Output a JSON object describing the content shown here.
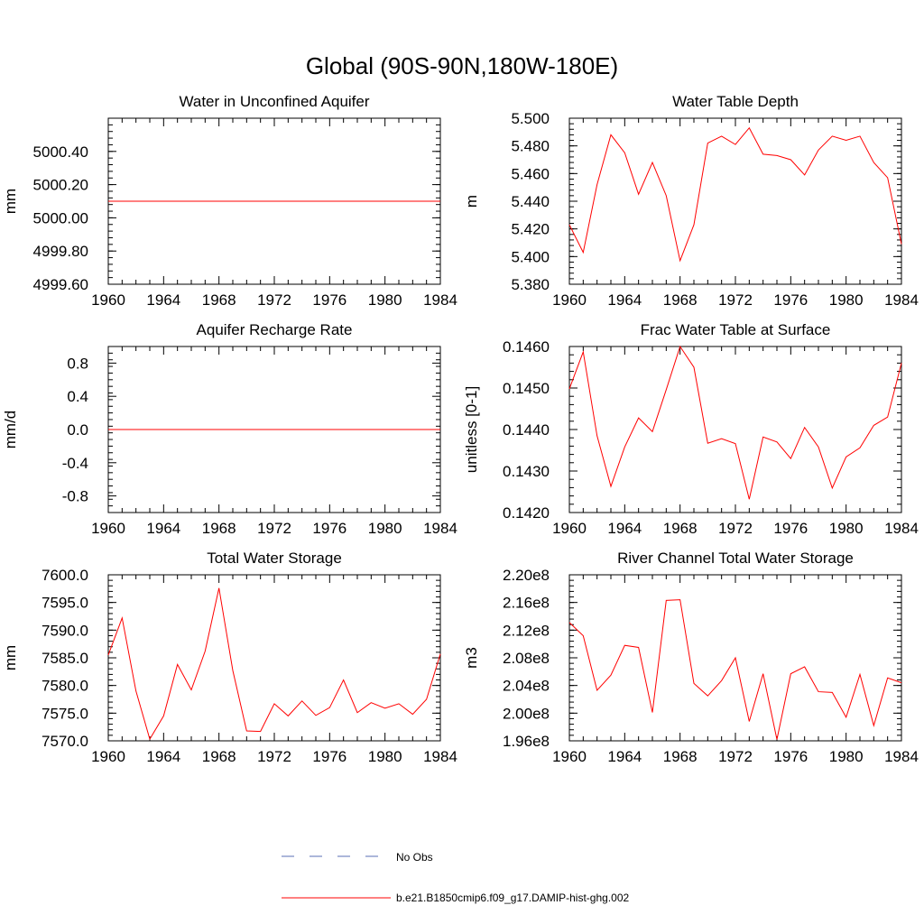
{
  "figure": {
    "title": "Global (90S-90N,180W-180E)",
    "legend": {
      "entries": [
        {
          "label": "No Obs",
          "style": "dashed",
          "color": "#5a6fb4"
        },
        {
          "label": "b.e21.B1850cmip6.f09_g17.DAMIP-hist-ghg.002",
          "style": "solid",
          "color": "#ff0000"
        }
      ]
    }
  },
  "chart_data": [
    {
      "type": "line",
      "title": "Water in Unconfined Aquifer",
      "xlabel": "",
      "ylabel": "mm",
      "xlim": [
        1960,
        1984
      ],
      "ylim": [
        4999.6,
        5000.6
      ],
      "xticks": [
        "1960",
        "1964",
        "1968",
        "1972",
        "1976",
        "1980",
        "1984"
      ],
      "yticks": [
        "4999.60",
        "4999.80",
        "5000.00",
        "5000.20",
        "5000.40"
      ],
      "ytick_values": [
        4999.6,
        4999.8,
        5000.0,
        5000.2,
        5000.4
      ],
      "ytick_minor_step": 0.04,
      "x": [
        1960,
        1961,
        1962,
        1963,
        1964,
        1965,
        1966,
        1967,
        1968,
        1969,
        1970,
        1971,
        1972,
        1973,
        1974,
        1975,
        1976,
        1977,
        1978,
        1979,
        1980,
        1981,
        1982,
        1983,
        1984
      ],
      "series": [
        {
          "color": "#ff0000",
          "values": [
            5000.1,
            5000.1,
            5000.1,
            5000.1,
            5000.1,
            5000.1,
            5000.1,
            5000.1,
            5000.1,
            5000.1,
            5000.1,
            5000.1,
            5000.1,
            5000.1,
            5000.1,
            5000.1,
            5000.1,
            5000.1,
            5000.1,
            5000.1,
            5000.1,
            5000.1,
            5000.1,
            5000.1,
            5000.1
          ]
        }
      ]
    },
    {
      "type": "line",
      "title": "Water Table Depth",
      "xlabel": "",
      "ylabel": "m",
      "xlim": [
        1960,
        1984
      ],
      "ylim": [
        5.38,
        5.5
      ],
      "xticks": [
        "1960",
        "1964",
        "1968",
        "1972",
        "1976",
        "1980",
        "1984"
      ],
      "yticks": [
        "5.380",
        "5.400",
        "5.420",
        "5.440",
        "5.460",
        "5.480",
        "5.500"
      ],
      "ytick_values": [
        5.38,
        5.4,
        5.42,
        5.44,
        5.46,
        5.48,
        5.5
      ],
      "ytick_minor_step": 0.004,
      "x": [
        1960,
        1961,
        1962,
        1963,
        1964,
        1965,
        1966,
        1967,
        1968,
        1969,
        1970,
        1971,
        1972,
        1973,
        1974,
        1975,
        1976,
        1977,
        1978,
        1979,
        1980,
        1981,
        1982,
        1983,
        1984
      ],
      "series": [
        {
          "color": "#ff0000",
          "values": [
            5.423,
            5.403,
            5.452,
            5.488,
            5.475,
            5.445,
            5.468,
            5.444,
            5.397,
            5.423,
            5.482,
            5.487,
            5.481,
            5.493,
            5.474,
            5.473,
            5.47,
            5.459,
            5.477,
            5.487,
            5.484,
            5.487,
            5.468,
            5.457,
            5.409
          ]
        }
      ]
    },
    {
      "type": "line",
      "title": "Aquifer Recharge Rate",
      "xlabel": "",
      "ylabel": "mm/d",
      "xlim": [
        1960,
        1984
      ],
      "ylim": [
        -1.0,
        1.0
      ],
      "xticks": [
        "1960",
        "1964",
        "1968",
        "1972",
        "1976",
        "1980",
        "1984"
      ],
      "yticks": [
        "-0.8",
        "-0.4",
        "0.0",
        "0.4",
        "0.8"
      ],
      "ytick_values": [
        -0.8,
        -0.4,
        0.0,
        0.4,
        0.8
      ],
      "ytick_minor_step": 0.08,
      "x": [
        1960,
        1961,
        1962,
        1963,
        1964,
        1965,
        1966,
        1967,
        1968,
        1969,
        1970,
        1971,
        1972,
        1973,
        1974,
        1975,
        1976,
        1977,
        1978,
        1979,
        1980,
        1981,
        1982,
        1983,
        1984
      ],
      "series": [
        {
          "color": "#ff0000",
          "values": [
            0,
            0,
            0,
            0,
            0,
            0,
            0,
            0,
            0,
            0,
            0,
            0,
            0,
            0,
            0,
            0,
            0,
            0,
            0,
            0,
            0,
            0,
            0,
            0,
            0
          ]
        }
      ]
    },
    {
      "type": "line",
      "title": "Frac Water Table at Surface",
      "xlabel": "",
      "ylabel": "unitless [0-1]",
      "xlim": [
        1960,
        1984
      ],
      "ylim": [
        0.142,
        0.146
      ],
      "xticks": [
        "1960",
        "1964",
        "1968",
        "1972",
        "1976",
        "1980",
        "1984"
      ],
      "yticks": [
        "0.1420",
        "0.1430",
        "0.1440",
        "0.1450",
        "0.1460"
      ],
      "ytick_values": [
        0.142,
        0.143,
        0.144,
        0.145,
        0.146
      ],
      "ytick_minor_step": 0.0002,
      "x": [
        1960,
        1961,
        1962,
        1963,
        1964,
        1965,
        1966,
        1967,
        1968,
        1969,
        1970,
        1971,
        1972,
        1973,
        1974,
        1975,
        1976,
        1977,
        1978,
        1979,
        1980,
        1981,
        1982,
        1983,
        1984
      ],
      "series": [
        {
          "color": "#ff0000",
          "values": [
            0.14498,
            0.14587,
            0.14385,
            0.14263,
            0.14358,
            0.14428,
            0.14395,
            0.14496,
            0.146,
            0.1455,
            0.14367,
            0.14378,
            0.14366,
            0.14232,
            0.14382,
            0.1437,
            0.1433,
            0.14405,
            0.14358,
            0.14259,
            0.14334,
            0.14356,
            0.1441,
            0.1443,
            0.1456
          ]
        }
      ]
    },
    {
      "type": "line",
      "title": "Total Water Storage",
      "xlabel": "",
      "ylabel": "mm",
      "xlim": [
        1960,
        1984
      ],
      "ylim": [
        7570.0,
        7600.0
      ],
      "xticks": [
        "1960",
        "1964",
        "1968",
        "1972",
        "1976",
        "1980",
        "1984"
      ],
      "yticks": [
        "7570.0",
        "7575.0",
        "7580.0",
        "7585.0",
        "7590.0",
        "7595.0",
        "7600.0"
      ],
      "ytick_values": [
        7570,
        7575,
        7580,
        7585,
        7590,
        7595,
        7600
      ],
      "ytick_minor_step": 1,
      "x": [
        1960,
        1961,
        1962,
        1963,
        1964,
        1965,
        1966,
        1967,
        1968,
        1969,
        1970,
        1971,
        1972,
        1973,
        1974,
        1975,
        1976,
        1977,
        1978,
        1979,
        1980,
        1981,
        1982,
        1983,
        1984
      ],
      "series": [
        {
          "color": "#ff0000",
          "values": [
            7585.5,
            7592.2,
            7579.0,
            7570.3,
            7574.5,
            7583.8,
            7579.2,
            7586.2,
            7597.6,
            7582.7,
            7571.8,
            7571.7,
            7576.7,
            7574.5,
            7577.2,
            7574.6,
            7576.0,
            7581.0,
            7575.1,
            7576.9,
            7575.9,
            7576.7,
            7574.8,
            7577.5,
            7585.7
          ]
        }
      ]
    },
    {
      "type": "line",
      "title": "River Channel Total Water Storage",
      "xlabel": "",
      "ylabel": "m3",
      "xlim": [
        1960,
        1984
      ],
      "ylim": [
        196000000,
        220000000
      ],
      "xticks": [
        "1960",
        "1964",
        "1968",
        "1972",
        "1976",
        "1980",
        "1984"
      ],
      "yticks": [
        "1.96e8",
        "2.00e8",
        "2.04e8",
        "2.08e8",
        "2.12e8",
        "2.16e8",
        "2.20e8"
      ],
      "ytick_values": [
        196000000,
        200000000,
        204000000,
        208000000,
        212000000,
        216000000,
        220000000
      ],
      "ytick_minor_step": 800000,
      "x": [
        1960,
        1961,
        1962,
        1963,
        1964,
        1965,
        1966,
        1967,
        1968,
        1969,
        1970,
        1971,
        1972,
        1973,
        1974,
        1975,
        1976,
        1977,
        1978,
        1979,
        1980,
        1981,
        1982,
        1983,
        1984
      ],
      "series": [
        {
          "color": "#ff0000",
          "values": [
            213100000,
            211200000,
            203300000,
            205500000,
            209800000,
            209500000,
            200100000,
            216300000,
            216400000,
            204300000,
            202500000,
            204700000,
            208000000,
            198800000,
            205700000,
            196200000,
            205700000,
            206700000,
            203100000,
            203000000,
            199400000,
            205600000,
            198200000,
            205100000,
            204400000
          ]
        }
      ]
    }
  ]
}
